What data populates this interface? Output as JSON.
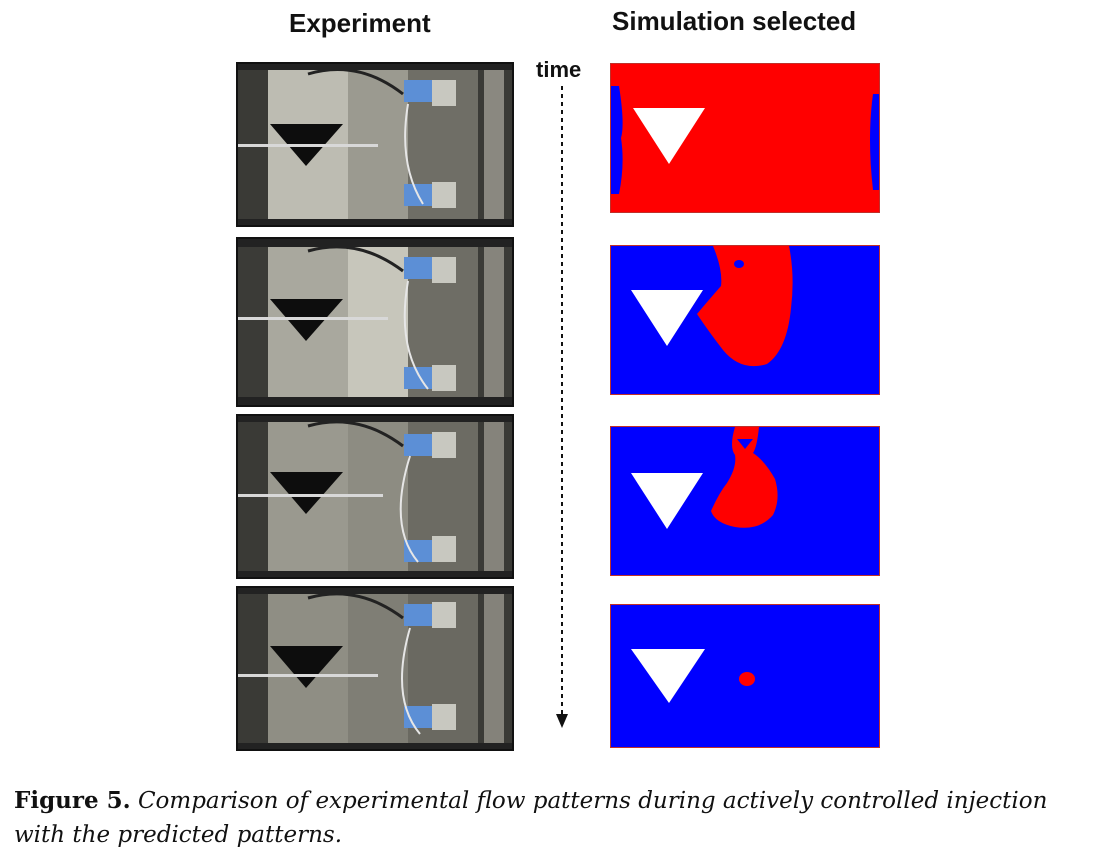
{
  "headers": {
    "experiment": "Experiment",
    "simulation": "Simulation selected"
  },
  "time_axis": {
    "label": "time",
    "style": "dashed arrow pointing down"
  },
  "panels": [
    {
      "experiment": "photo-1",
      "simulation": "red resin with small blue regions at left and right edges"
    },
    {
      "experiment": "photo-2",
      "simulation": "blue with red region near top center"
    },
    {
      "experiment": "photo-3",
      "simulation": "blue with smaller red region near top center"
    },
    {
      "experiment": "photo-4",
      "simulation": "blue with tiny red spot"
    }
  ],
  "colors": {
    "resin_red": "#ff0000",
    "fill_blue": "#0000ff",
    "insert_white": "#ffffff",
    "border": "#c0302a"
  },
  "caption": {
    "label": "Figure 5.",
    "text": "Comparison of experimental flow patterns during actively controlled injection with the predicted patterns."
  }
}
